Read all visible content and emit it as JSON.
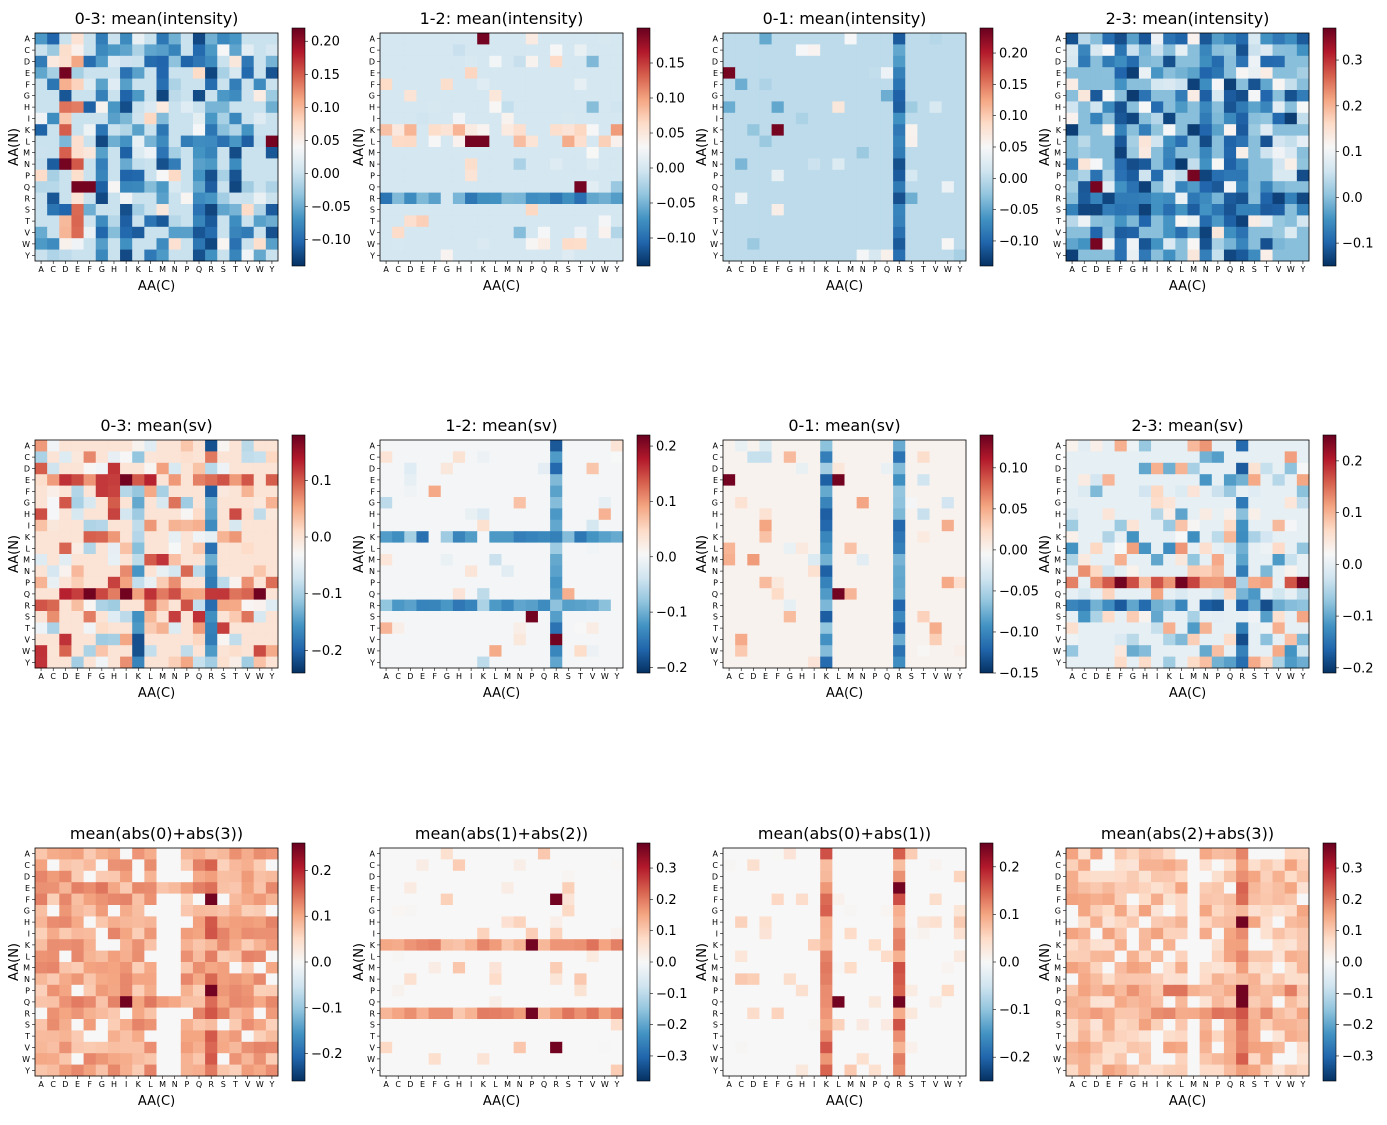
{
  "figure": {
    "background": "#ffffff",
    "colormap": "RdBu_r",
    "colormap_stops": [
      "#053061",
      "#2166ac",
      "#4393c3",
      "#92c5de",
      "#d1e5f0",
      "#f7f7f7",
      "#fddbc7",
      "#f4a582",
      "#d6604d",
      "#b2182b",
      "#67001f"
    ]
  },
  "chart_data": [
    {
      "type": "heatmap",
      "title": "0-3: mean(intensity)",
      "xlabel": "AA(C)",
      "ylabel": "AA(N)",
      "x_categories": [
        "A",
        "C",
        "D",
        "E",
        "F",
        "G",
        "H",
        "I",
        "K",
        "L",
        "M",
        "N",
        "P",
        "Q",
        "R",
        "S",
        "T",
        "V",
        "W",
        "Y"
      ],
      "y_categories": [
        "A",
        "C",
        "D",
        "E",
        "F",
        "G",
        "H",
        "I",
        "K",
        "L",
        "M",
        "N",
        "P",
        "Q",
        "R",
        "S",
        "T",
        "V",
        "W",
        "Y"
      ],
      "colorbar": {
        "vmin": -0.14,
        "vmax": 0.22,
        "ticks": [
          "0.20",
          "0.15",
          "0.10",
          "0.05",
          "0.00",
          "−0.05",
          "−0.10"
        ]
      },
      "pattern": {
        "kind": "mixed",
        "seed": 11,
        "density": 0.6,
        "bias": -0.02,
        "neg_columns": [
          5,
          7,
          10,
          13,
          14,
          16
        ],
        "pos_columns": [
          2,
          3
        ],
        "hot_cells": [
          [
            13,
            3
          ],
          [
            13,
            4
          ],
          [
            3,
            2
          ],
          [
            11,
            2
          ],
          [
            9,
            19
          ]
        ]
      }
    },
    {
      "type": "heatmap",
      "title": "1-2: mean(intensity)",
      "xlabel": "AA(C)",
      "ylabel": "AA(N)",
      "x_categories": [
        "A",
        "C",
        "D",
        "E",
        "F",
        "G",
        "H",
        "I",
        "K",
        "L",
        "M",
        "N",
        "P",
        "Q",
        "R",
        "S",
        "T",
        "V",
        "W",
        "Y"
      ],
      "y_categories": [
        "A",
        "C",
        "D",
        "E",
        "F",
        "G",
        "H",
        "I",
        "K",
        "L",
        "M",
        "N",
        "P",
        "Q",
        "R",
        "S",
        "T",
        "V",
        "W",
        "Y"
      ],
      "colorbar": {
        "vmin": -0.14,
        "vmax": 0.2,
        "ticks": [
          "0.15",
          "0.10",
          "0.05",
          "0.00",
          "−0.05",
          "−0.10"
        ]
      },
      "pattern": {
        "kind": "sparse",
        "seed": 23,
        "density": 0.12,
        "neg_rows": [
          14
        ],
        "pos_rows": [
          8,
          9
        ],
        "hot_cells": [
          [
            9,
            7
          ],
          [
            9,
            8
          ],
          [
            13,
            16
          ],
          [
            0,
            8
          ]
        ]
      }
    },
    {
      "type": "heatmap",
      "title": "0-1: mean(intensity)",
      "xlabel": "AA(C)",
      "ylabel": "AA(N)",
      "x_categories": [
        "A",
        "C",
        "D",
        "E",
        "F",
        "G",
        "H",
        "I",
        "K",
        "L",
        "M",
        "N",
        "P",
        "Q",
        "R",
        "S",
        "T",
        "V",
        "W",
        "Y"
      ],
      "y_categories": [
        "A",
        "C",
        "D",
        "E",
        "F",
        "G",
        "H",
        "I",
        "K",
        "L",
        "M",
        "N",
        "P",
        "Q",
        "R",
        "S",
        "T",
        "V",
        "W",
        "Y"
      ],
      "colorbar": {
        "vmin": -0.14,
        "vmax": 0.24,
        "ticks": [
          "0.20",
          "0.15",
          "0.10",
          "0.05",
          "0.00",
          "−0.05",
          "−0.10"
        ]
      },
      "pattern": {
        "kind": "sparse",
        "seed": 37,
        "density": 0.1,
        "neg_columns": [
          14
        ],
        "hot_cells": [
          [
            3,
            0
          ],
          [
            8,
            4
          ]
        ]
      }
    },
    {
      "type": "heatmap",
      "title": "2-3: mean(intensity)",
      "xlabel": "AA(C)",
      "ylabel": "AA(N)",
      "x_categories": [
        "A",
        "C",
        "D",
        "E",
        "F",
        "G",
        "H",
        "I",
        "K",
        "L",
        "M",
        "N",
        "P",
        "Q",
        "R",
        "S",
        "T",
        "V",
        "W",
        "Y"
      ],
      "y_categories": [
        "A",
        "C",
        "D",
        "E",
        "F",
        "G",
        "H",
        "I",
        "K",
        "L",
        "M",
        "N",
        "P",
        "Q",
        "R",
        "S",
        "T",
        "V",
        "W",
        "Y"
      ],
      "colorbar": {
        "vmin": -0.15,
        "vmax": 0.37,
        "ticks": [
          "0.3",
          "0.2",
          "0.1",
          "0.0",
          "−0.1"
        ]
      },
      "pattern": {
        "kind": "mixed",
        "seed": 53,
        "density": 0.65,
        "bias": 0.0,
        "neg_columns": [
          4,
          11,
          13,
          14
        ],
        "neg_rows": [
          14,
          15
        ],
        "hot_cells": [
          [
            13,
            2
          ],
          [
            18,
            2
          ],
          [
            12,
            10
          ]
        ]
      }
    },
    {
      "type": "heatmap",
      "title": "0-3: mean(sv)",
      "xlabel": "AA(C)",
      "ylabel": "AA(N)",
      "x_categories": [
        "A",
        "C",
        "D",
        "E",
        "F",
        "G",
        "H",
        "I",
        "K",
        "L",
        "M",
        "N",
        "P",
        "Q",
        "R",
        "S",
        "T",
        "V",
        "W",
        "Y"
      ],
      "y_categories": [
        "A",
        "C",
        "D",
        "E",
        "F",
        "G",
        "H",
        "I",
        "K",
        "L",
        "M",
        "N",
        "P",
        "Q",
        "R",
        "S",
        "T",
        "V",
        "W",
        "Y"
      ],
      "colorbar": {
        "vmin": -0.24,
        "vmax": 0.18,
        "ticks": [
          "0.1",
          "0.0",
          "−0.1",
          "−0.2"
        ]
      },
      "pattern": {
        "kind": "mixed",
        "seed": 71,
        "density": 0.55,
        "bias": 0.01,
        "pos_rows": [
          3,
          13
        ],
        "neg_columns": [
          8,
          14
        ],
        "hot_cells": [
          [
            13,
            7
          ],
          [
            13,
            4
          ],
          [
            3,
            7
          ],
          [
            13,
            18
          ]
        ]
      }
    },
    {
      "type": "heatmap",
      "title": "1-2: mean(sv)",
      "xlabel": "AA(C)",
      "ylabel": "AA(N)",
      "x_categories": [
        "A",
        "C",
        "D",
        "E",
        "F",
        "G",
        "H",
        "I",
        "K",
        "L",
        "M",
        "N",
        "P",
        "Q",
        "R",
        "S",
        "T",
        "V",
        "W",
        "Y"
      ],
      "y_categories": [
        "A",
        "C",
        "D",
        "E",
        "F",
        "G",
        "H",
        "I",
        "K",
        "L",
        "M",
        "N",
        "P",
        "Q",
        "R",
        "S",
        "T",
        "V",
        "W",
        "Y"
      ],
      "colorbar": {
        "vmin": -0.21,
        "vmax": 0.22,
        "ticks": [
          "0.2",
          "0.1",
          "0.0",
          "−0.1",
          "−0.2"
        ]
      },
      "pattern": {
        "kind": "sparse",
        "seed": 89,
        "density": 0.12,
        "neg_rows": [
          14,
          8
        ],
        "neg_columns": [
          14
        ],
        "hot_cells": [
          [
            15,
            12
          ],
          [
            17,
            14
          ]
        ]
      }
    },
    {
      "type": "heatmap",
      "title": "0-1: mean(sv)",
      "xlabel": "AA(C)",
      "ylabel": "AA(N)",
      "x_categories": [
        "A",
        "C",
        "D",
        "E",
        "F",
        "G",
        "H",
        "I",
        "K",
        "L",
        "M",
        "N",
        "P",
        "Q",
        "R",
        "S",
        "T",
        "V",
        "W",
        "Y"
      ],
      "y_categories": [
        "A",
        "C",
        "D",
        "E",
        "F",
        "G",
        "H",
        "I",
        "K",
        "L",
        "M",
        "N",
        "P",
        "Q",
        "R",
        "S",
        "T",
        "V",
        "W",
        "Y"
      ],
      "colorbar": {
        "vmin": -0.15,
        "vmax": 0.14,
        "ticks": [
          "0.10",
          "0.05",
          "0.00",
          "−0.05",
          "−0.10",
          "−0.15"
        ]
      },
      "pattern": {
        "kind": "sparse",
        "seed": 97,
        "density": 0.12,
        "neg_columns": [
          8,
          14
        ],
        "hot_cells": [
          [
            3,
            0
          ],
          [
            3,
            9
          ],
          [
            13,
            9
          ]
        ]
      }
    },
    {
      "type": "heatmap",
      "title": "2-3: mean(sv)",
      "xlabel": "AA(C)",
      "ylabel": "AA(N)",
      "x_categories": [
        "A",
        "C",
        "D",
        "E",
        "F",
        "G",
        "H",
        "I",
        "K",
        "L",
        "M",
        "N",
        "P",
        "Q",
        "R",
        "S",
        "T",
        "V",
        "W",
        "Y"
      ],
      "y_categories": [
        "A",
        "C",
        "D",
        "E",
        "F",
        "G",
        "H",
        "I",
        "K",
        "L",
        "M",
        "N",
        "P",
        "Q",
        "R",
        "S",
        "T",
        "V",
        "W",
        "Y"
      ],
      "colorbar": {
        "vmin": -0.21,
        "vmax": 0.25,
        "ticks": [
          "0.2",
          "0.1",
          "0.0",
          "−0.1",
          "−0.2"
        ]
      },
      "pattern": {
        "kind": "mixed",
        "seed": 103,
        "density": 0.5,
        "bias": 0.0,
        "pos_rows": [
          12
        ],
        "neg_rows": [
          14
        ],
        "neg_columns": [
          14
        ],
        "hot_cells": [
          [
            12,
            4
          ],
          [
            12,
            9
          ],
          [
            12,
            19
          ]
        ]
      }
    },
    {
      "type": "heatmap",
      "title": "mean(abs(0)+abs(3))",
      "xlabel": "AA(C)",
      "ylabel": "AA(N)",
      "x_categories": [
        "A",
        "C",
        "D",
        "E",
        "F",
        "G",
        "H",
        "I",
        "K",
        "L",
        "M",
        "N",
        "P",
        "Q",
        "R",
        "S",
        "T",
        "V",
        "W",
        "Y"
      ],
      "y_categories": [
        "A",
        "C",
        "D",
        "E",
        "F",
        "G",
        "H",
        "I",
        "K",
        "L",
        "M",
        "N",
        "P",
        "Q",
        "R",
        "S",
        "T",
        "V",
        "W",
        "Y"
      ],
      "colorbar": {
        "vmin": -0.26,
        "vmax": 0.26,
        "ticks": [
          "0.2",
          "0.1",
          "0.0",
          "−0.1",
          "−0.2"
        ]
      },
      "pattern": {
        "kind": "positive",
        "seed": 131,
        "base": 0.06,
        "density": 0.85,
        "zero_columns": [
          10,
          11
        ],
        "pos_rows": [
          3,
          13
        ],
        "pos_columns": [
          14
        ],
        "hot_cells": [
          [
            4,
            14
          ],
          [
            12,
            14
          ],
          [
            13,
            7
          ]
        ]
      }
    },
    {
      "type": "heatmap",
      "title": "mean(abs(1)+abs(2))",
      "xlabel": "AA(C)",
      "ylabel": "AA(N)",
      "x_categories": [
        "A",
        "C",
        "D",
        "E",
        "F",
        "G",
        "H",
        "I",
        "K",
        "L",
        "M",
        "N",
        "P",
        "Q",
        "R",
        "S",
        "T",
        "V",
        "W",
        "Y"
      ],
      "y_categories": [
        "A",
        "C",
        "D",
        "E",
        "F",
        "G",
        "H",
        "I",
        "K",
        "L",
        "M",
        "N",
        "P",
        "Q",
        "R",
        "S",
        "T",
        "V",
        "W",
        "Y"
      ],
      "colorbar": {
        "vmin": -0.38,
        "vmax": 0.38,
        "ticks": [
          "0.3",
          "0.2",
          "0.1",
          "0.0",
          "−0.1",
          "−0.2",
          "−0.3"
        ]
      },
      "pattern": {
        "kind": "positive",
        "seed": 149,
        "base": 0.0,
        "density": 0.12,
        "pos_rows": [
          8,
          14
        ],
        "hot_cells": [
          [
            14,
            12
          ],
          [
            8,
            12
          ],
          [
            17,
            14
          ],
          [
            4,
            14
          ]
        ]
      }
    },
    {
      "type": "heatmap",
      "title": "mean(abs(0)+abs(1))",
      "xlabel": "AA(C)",
      "ylabel": "AA(N)",
      "x_categories": [
        "A",
        "C",
        "D",
        "E",
        "F",
        "G",
        "H",
        "I",
        "K",
        "L",
        "M",
        "N",
        "P",
        "Q",
        "R",
        "S",
        "T",
        "V",
        "W",
        "Y"
      ],
      "y_categories": [
        "A",
        "C",
        "D",
        "E",
        "F",
        "G",
        "H",
        "I",
        "K",
        "L",
        "M",
        "N",
        "P",
        "Q",
        "R",
        "S",
        "T",
        "V",
        "W",
        "Y"
      ],
      "colorbar": {
        "vmin": -0.25,
        "vmax": 0.25,
        "ticks": [
          "0.2",
          "0.1",
          "0.0",
          "−0.1",
          "−0.2"
        ]
      },
      "pattern": {
        "kind": "positive",
        "seed": 157,
        "base": 0.0,
        "density": 0.12,
        "pos_columns": [
          8,
          14
        ],
        "hot_cells": [
          [
            13,
            14
          ],
          [
            3,
            14
          ],
          [
            13,
            9
          ]
        ]
      }
    },
    {
      "type": "heatmap",
      "title": "mean(abs(2)+abs(3))",
      "xlabel": "AA(C)",
      "ylabel": "AA(N)",
      "x_categories": [
        "A",
        "C",
        "D",
        "E",
        "F",
        "G",
        "H",
        "I",
        "K",
        "L",
        "M",
        "N",
        "P",
        "Q",
        "R",
        "S",
        "T",
        "V",
        "W",
        "Y"
      ],
      "y_categories": [
        "A",
        "C",
        "D",
        "E",
        "F",
        "G",
        "H",
        "I",
        "K",
        "L",
        "M",
        "N",
        "P",
        "Q",
        "R",
        "S",
        "T",
        "V",
        "W",
        "Y"
      ],
      "colorbar": {
        "vmin": -0.38,
        "vmax": 0.38,
        "ticks": [
          "0.3",
          "0.2",
          "0.1",
          "0.0",
          "−0.1",
          "−0.2",
          "−0.3"
        ]
      },
      "pattern": {
        "kind": "positive",
        "seed": 173,
        "base": 0.05,
        "density": 0.85,
        "zero_columns": [
          10
        ],
        "pos_rows": [
          12,
          14
        ],
        "pos_columns": [
          14
        ],
        "hot_cells": [
          [
            12,
            14
          ],
          [
            6,
            14
          ],
          [
            13,
            14
          ]
        ]
      }
    }
  ]
}
